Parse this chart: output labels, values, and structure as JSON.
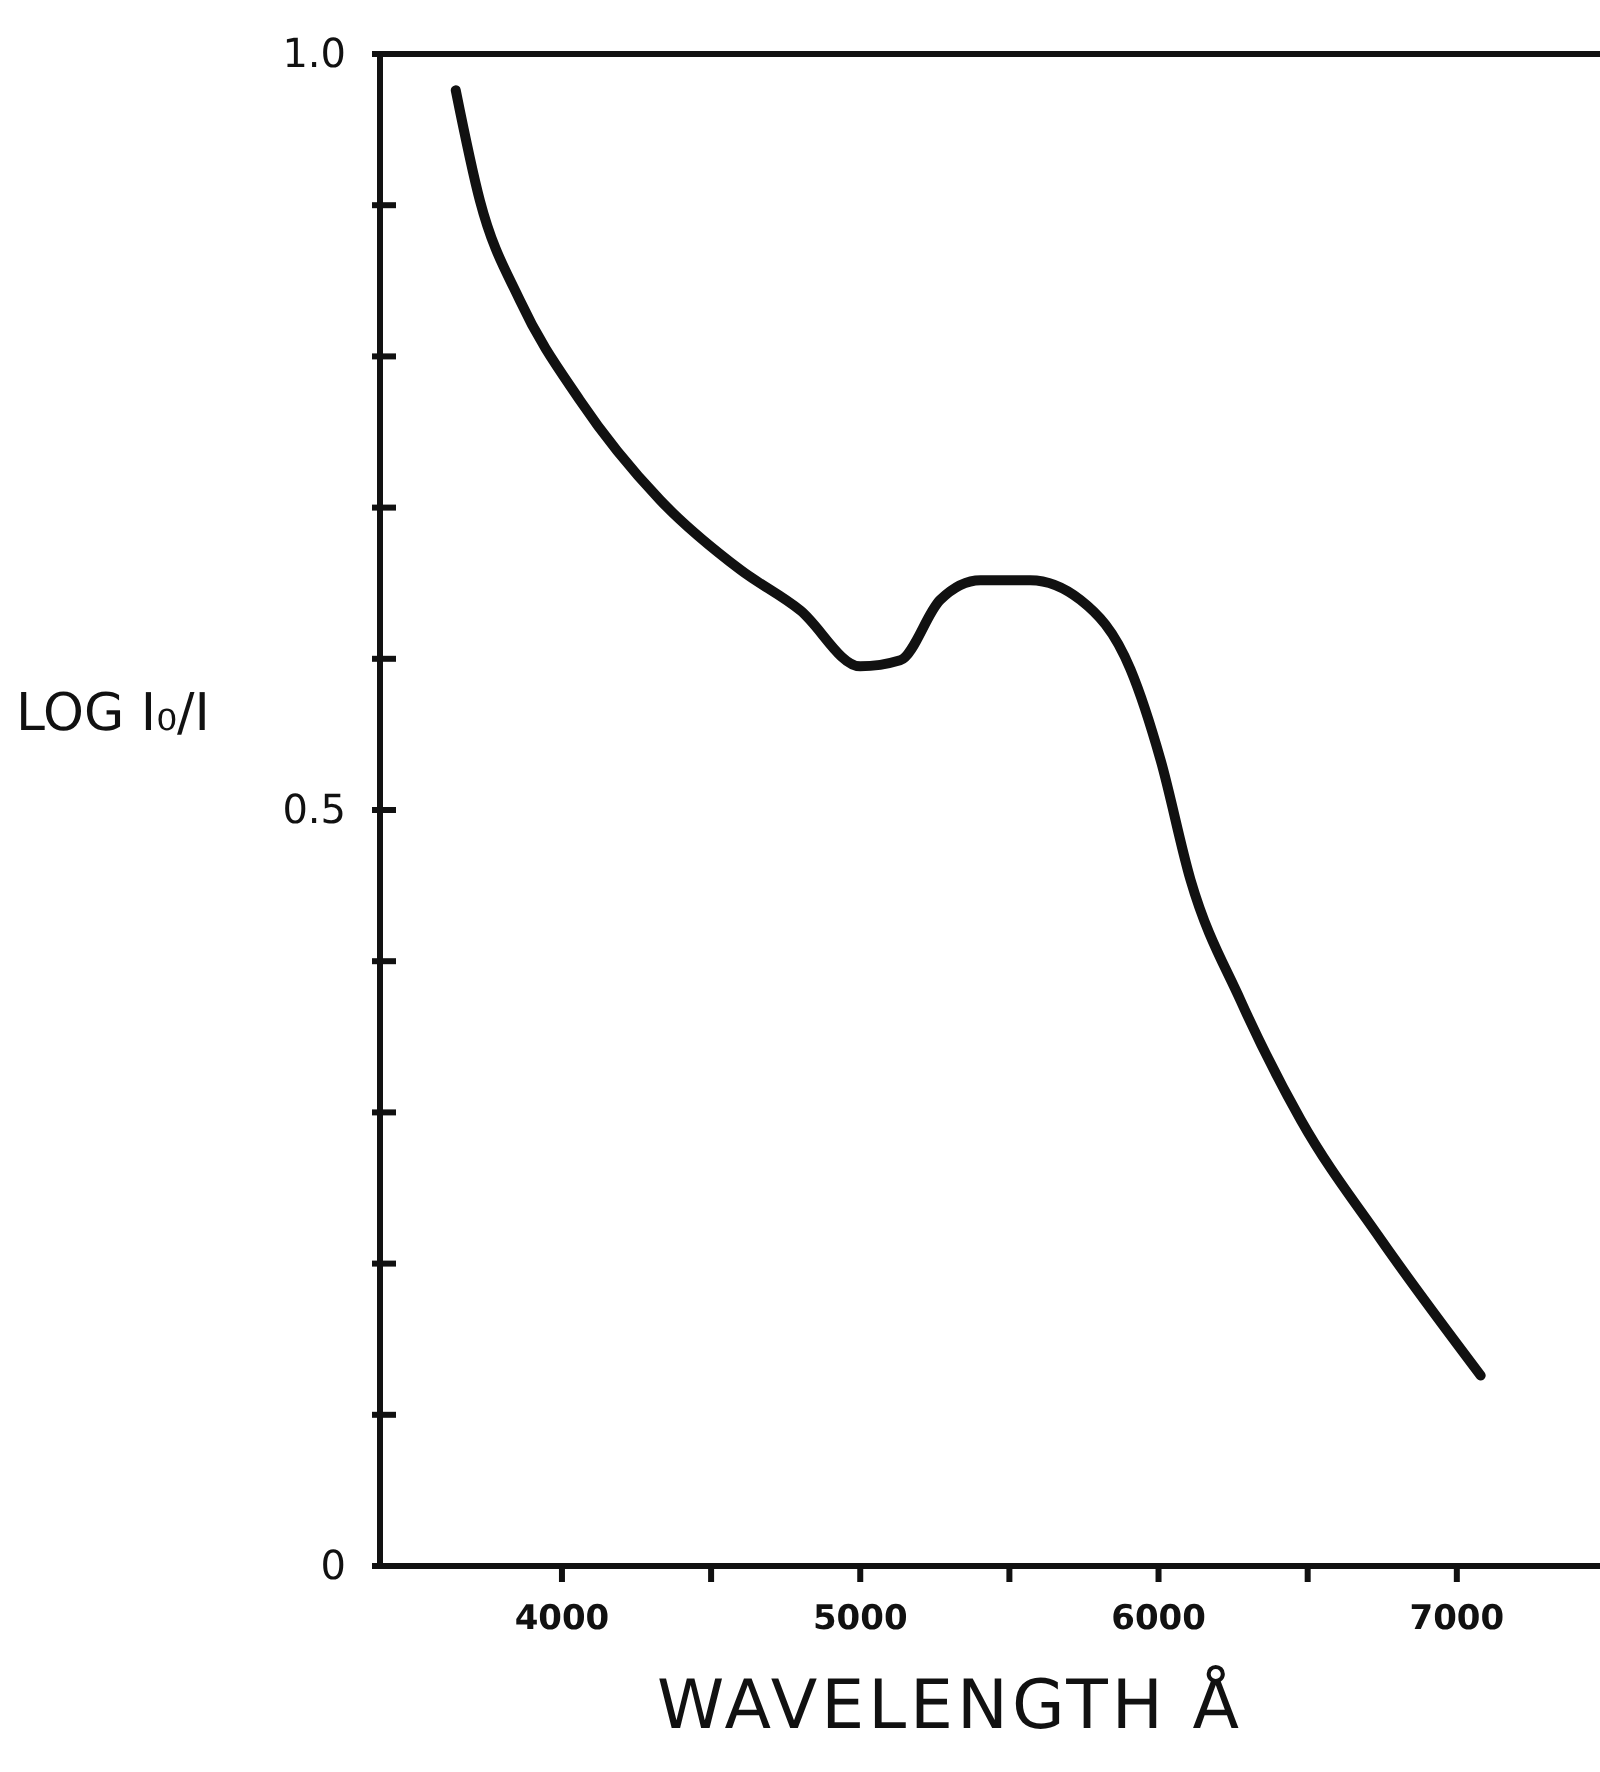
{
  "chart_data": {
    "type": "line",
    "xlabel": "WAVELENGTH Å",
    "ylabel": "LOG I₀/I",
    "xlim": [
      3390,
      7480
    ],
    "ylim": [
      0,
      1.0
    ],
    "xticks": [
      4000,
      {
        "value": 4500,
        "label": null
      },
      5000,
      {
        "value": 5500,
        "label": null
      },
      6000,
      {
        "value": 6500,
        "label": null
      },
      7000
    ],
    "yticks": [
      {
        "value": 0,
        "label": "0"
      },
      {
        "value": 0.1,
        "label": null
      },
      {
        "value": 0.2,
        "label": null
      },
      {
        "value": 0.3,
        "label": null
      },
      {
        "value": 0.4,
        "label": null
      },
      {
        "value": 0.5,
        "label": "0.5"
      },
      {
        "value": 0.6,
        "label": null
      },
      {
        "value": 0.7,
        "label": null
      },
      {
        "value": 0.8,
        "label": null
      },
      {
        "value": 0.9,
        "label": null
      },
      {
        "value": 1.0,
        "label": "1.0"
      }
    ],
    "x": [
      3644,
      3725,
      3859,
      4060,
      4329,
      4597,
      4799,
      5000,
      5134,
      5268,
      5403,
      5570,
      5738,
      5906,
      6007,
      6107,
      6275,
      6477,
      6745,
      7080
    ],
    "series": [
      {
        "color": "#111111",
        "values": [
          0.976,
          0.903,
          0.837,
          0.771,
          0.705,
          0.659,
          0.632,
          0.595,
          0.599,
          0.639,
          0.652,
          0.652,
          0.639,
          0.593,
          0.533,
          0.454,
          0.374,
          0.295,
          0.216,
          0.126
        ]
      }
    ],
    "grid": false,
    "marker": "none",
    "line_style": "solid"
  }
}
